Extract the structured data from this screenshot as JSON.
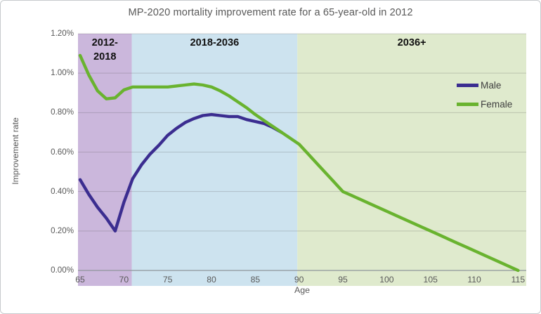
{
  "chart_data": {
    "type": "line",
    "title": "MP-2020 mortality improvement rate for a 65-year-old in 2012",
    "xlabel": "Age",
    "ylabel": "Improvement rate",
    "xlim": [
      65,
      115
    ],
    "ylim_pct": [
      0.0,
      1.2
    ],
    "x_ticks": [
      65,
      70,
      75,
      80,
      85,
      90,
      95,
      100,
      105,
      110,
      115
    ],
    "y_ticks": [
      "0.00%",
      "0.20%",
      "0.40%",
      "0.60%",
      "0.80%",
      "1.00%",
      "1.20%"
    ],
    "grid": true,
    "legend_position": "inside-right",
    "regions": [
      {
        "label": "2012-2018",
        "x_start": 65,
        "x_end": 70.9,
        "color": "#cbb7dc"
      },
      {
        "label": "2018-2036",
        "x_start": 70.9,
        "x_end": 89.8,
        "color": "#cde3ef"
      },
      {
        "label": "2036+",
        "x_start": 89.8,
        "x_end": 115,
        "color": "#dfeacd"
      }
    ],
    "series": [
      {
        "name": "Male",
        "color": "#3b2d90",
        "x": [
          65,
          66,
          67,
          68,
          69,
          70,
          71,
          72,
          73,
          74,
          75,
          76,
          77,
          78,
          79,
          80,
          81,
          82,
          83,
          84,
          85,
          86,
          87,
          88
        ],
        "values_pct": [
          0.46,
          0.385,
          0.32,
          0.265,
          0.2,
          0.345,
          0.465,
          0.535,
          0.59,
          0.635,
          0.685,
          0.72,
          0.75,
          0.77,
          0.785,
          0.79,
          0.785,
          0.78,
          0.78,
          0.765,
          0.755,
          0.745,
          0.725,
          0.7
        ]
      },
      {
        "name": "Female",
        "color": "#69b32f",
        "x": [
          65,
          66,
          67,
          68,
          69,
          70,
          71,
          72,
          73,
          74,
          75,
          76,
          77,
          78,
          79,
          80,
          81,
          82,
          83,
          84,
          85,
          86,
          87,
          88,
          89,
          90,
          91,
          92,
          93,
          94,
          95,
          96,
          97,
          98,
          99,
          100,
          101,
          102,
          103,
          104,
          105,
          106,
          107,
          108,
          109,
          110,
          111,
          112,
          113,
          114,
          115
        ],
        "values_pct": [
          1.09,
          0.99,
          0.91,
          0.87,
          0.875,
          0.915,
          0.93,
          0.93,
          0.93,
          0.93,
          0.93,
          0.935,
          0.94,
          0.945,
          0.94,
          0.93,
          0.91,
          0.885,
          0.855,
          0.825,
          0.79,
          0.76,
          0.73,
          0.7,
          0.67,
          0.64,
          0.592,
          0.544,
          0.496,
          0.448,
          0.4,
          0.38,
          0.36,
          0.34,
          0.32,
          0.3,
          0.28,
          0.26,
          0.24,
          0.22,
          0.2,
          0.18,
          0.16,
          0.14,
          0.12,
          0.1,
          0.08,
          0.06,
          0.04,
          0.02,
          0.0
        ]
      }
    ]
  }
}
